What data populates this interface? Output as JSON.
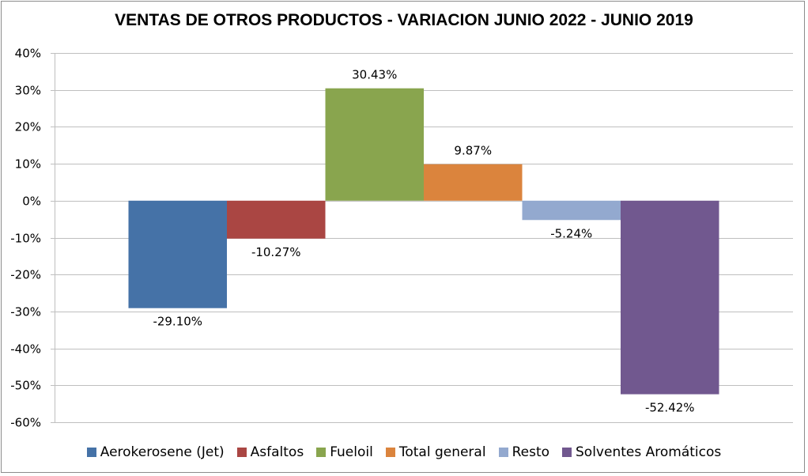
{
  "chart_data": {
    "type": "bar",
    "title": "VENTAS DE OTROS PRODUCTOS - VARIACION JUNIO 2022 - JUNIO 2019",
    "xlabel": "",
    "ylabel": "",
    "ylim": [
      -60,
      40
    ],
    "y_ticks": [
      40,
      30,
      20,
      10,
      0,
      -10,
      -20,
      -30,
      -40,
      -50,
      -60
    ],
    "y_tick_labels": [
      "40%",
      "30%",
      "20%",
      "10%",
      "0%",
      "-10%",
      "-20%",
      "-30%",
      "-40%",
      "-50%",
      "-60%"
    ],
    "grid": true,
    "legend_position": "bottom",
    "categories": [
      ""
    ],
    "series": [
      {
        "name": "Aerokerosene (Jet)",
        "values": [
          -29.1
        ],
        "label": "-29.10%",
        "color": "#4572A7"
      },
      {
        "name": "Asfaltos",
        "values": [
          -10.27
        ],
        "label": "-10.27%",
        "color": "#AA4643"
      },
      {
        "name": "Fueloil",
        "values": [
          30.43
        ],
        "label": "30.43%",
        "color": "#89A54E"
      },
      {
        "name": "Total general",
        "values": [
          9.87
        ],
        "label": "9.87%",
        "color": "#DB843D"
      },
      {
        "name": "Resto",
        "values": [
          -5.24
        ],
        "label": "-5.24%",
        "color": "#93A9CF"
      },
      {
        "name": "Solventes Aromáticos",
        "values": [
          -52.42
        ],
        "label": "-52.42%",
        "color": "#71588F"
      }
    ]
  }
}
